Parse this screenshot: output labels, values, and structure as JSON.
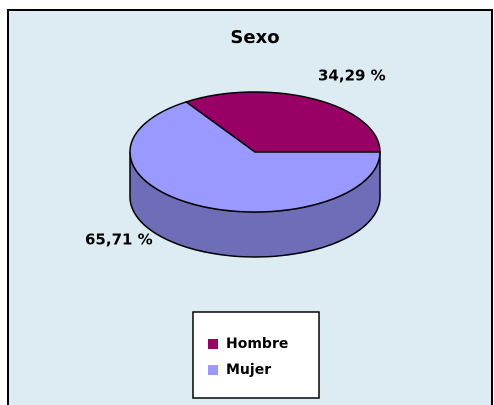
{
  "chart_data": {
    "type": "pie",
    "title": "Sexo",
    "categories": [
      "Hombre",
      "Mujer"
    ],
    "values": [
      34.29,
      65.71
    ],
    "value_labels": [
      "34,29 %",
      "65,71 %"
    ],
    "colors": [
      "#990066",
      "#9999ff"
    ],
    "legend": "bottom"
  }
}
